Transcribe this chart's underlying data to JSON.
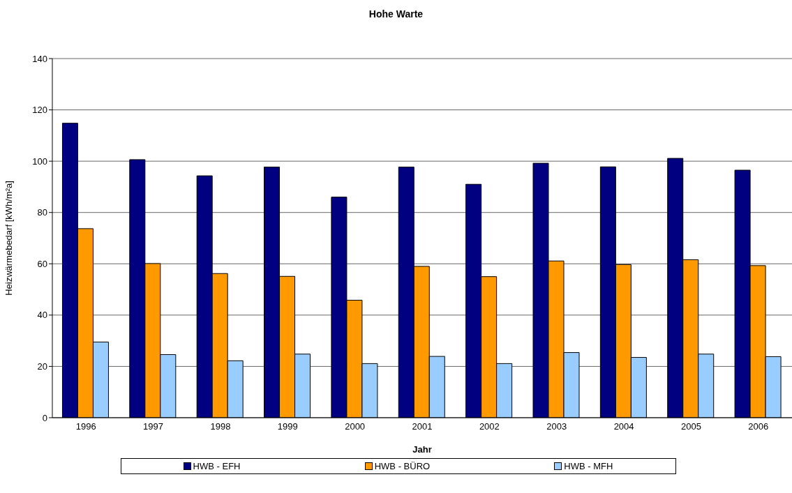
{
  "chart_data": {
    "type": "bar",
    "title": "Hohe Warte",
    "xlabel": "Jahr",
    "ylabel": "Heizwärmebedarf [kWh/m²a]",
    "categories": [
      "1996",
      "1997",
      "1998",
      "1999",
      "2000",
      "2001",
      "2002",
      "2003",
      "2004",
      "2005",
      "2006"
    ],
    "series": [
      {
        "name": "HWB - EFH",
        "color": "#000080",
        "values": [
          114.8,
          100.6,
          94.3,
          97.7,
          86.0,
          97.7,
          91.0,
          99.2,
          97.8,
          101.1,
          96.5
        ]
      },
      {
        "name": "HWB - BÜRO",
        "color": "#ff9900",
        "values": [
          73.7,
          60.1,
          56.2,
          55.1,
          45.8,
          59.0,
          55.0,
          61.1,
          59.7,
          61.6,
          59.3
        ]
      },
      {
        "name": "HWB - MFH",
        "color": "#99ccff",
        "values": [
          29.5,
          24.6,
          22.2,
          24.8,
          21.1,
          23.9,
          21.1,
          25.4,
          23.5,
          24.8,
          23.8
        ]
      }
    ],
    "ylim": [
      0,
      140
    ],
    "yticks": [
      0,
      20,
      40,
      60,
      80,
      100,
      120,
      140
    ],
    "grid": "y",
    "legend": "bottom"
  }
}
